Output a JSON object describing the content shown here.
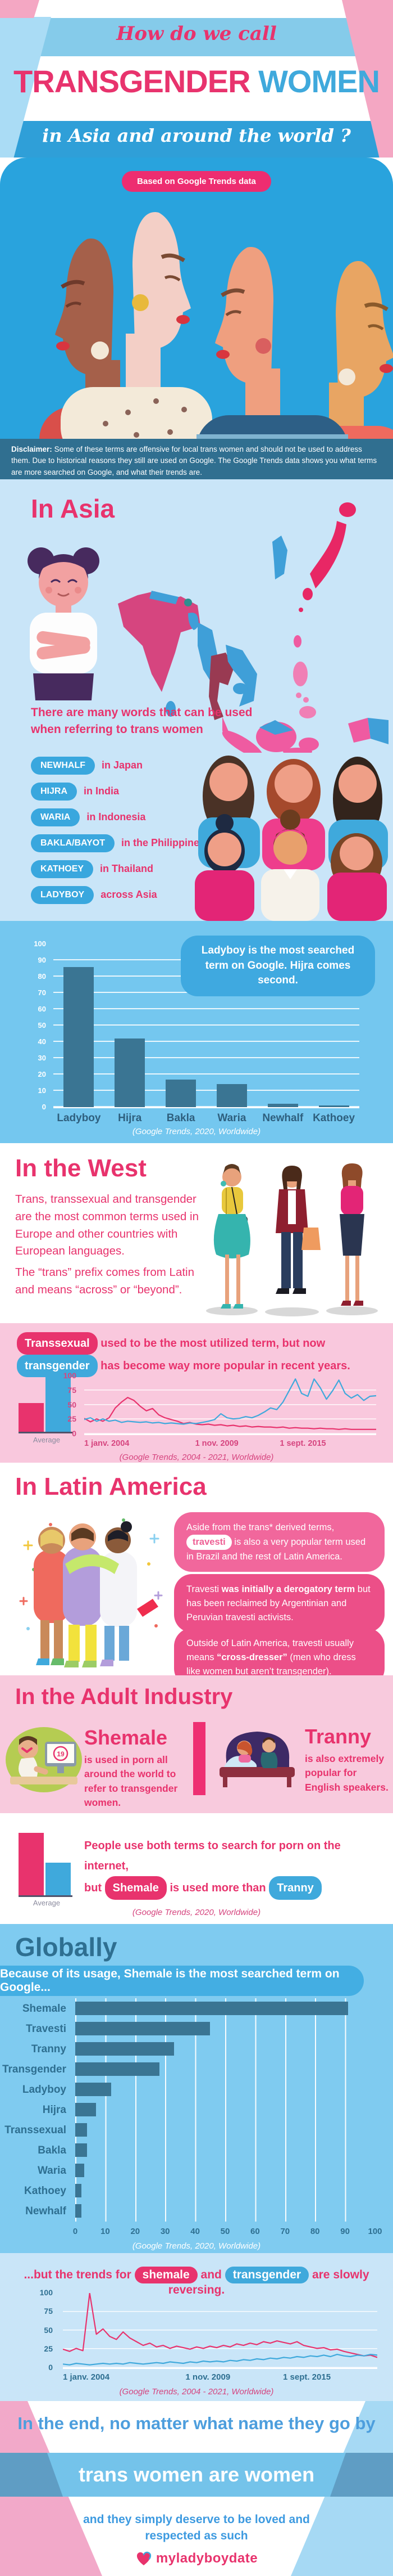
{
  "header": {
    "script_top": "How do we call",
    "title_pink": "TRANSGENDER",
    "title_blue": "WOMEN",
    "script_bottom": "in Asia and around the world ?"
  },
  "hero": {
    "badge": "Based on Google Trends data"
  },
  "disclaimer": {
    "label": "Disclaimer:",
    "text": "Some of these terms are offensive for local trans women and should not be used to address them. Due to historical reasons they still are used on Google. The Google Trends data shows you what terms are more searched on Google, and what their trends are."
  },
  "asia": {
    "title": "In Asia",
    "intro": "There are many words that can be used when referring to trans women",
    "terms": [
      {
        "term": "NEWHALF",
        "region": "in Japan"
      },
      {
        "term": "HIJRA",
        "region": "in India"
      },
      {
        "term": "WARIA",
        "region": "in Indonesia"
      },
      {
        "term": "BAKLA/BAYOT",
        "region": "in the Philippines"
      },
      {
        "term": "KATHOEY",
        "region": "in Thailand"
      },
      {
        "term": "LADYBOY",
        "region": "across Asia"
      }
    ]
  },
  "west": {
    "title": "In the West",
    "para1": "Trans, transsexual and transgender are the most common terms used in Europe and other countries with European languages.",
    "para2": "The “trans” prefix comes from Latin and means “across” or “beyond”."
  },
  "west_trends": {
    "pill1": "Transsexual",
    "mid": "used to be the most utilized term, but now",
    "pill2": "transgender",
    "end": "has become way more popular in recent years."
  },
  "latam": {
    "title": "In Latin America",
    "bubble1": {
      "pre": "Aside from the trans* derived terms,",
      "pill": "travesti",
      "post": "is also a very popular term used in Brazil and the rest of Latin America."
    },
    "bubble2": {
      "pre": "Travesti",
      "bold": "was initially a derogatory term",
      "post": "but has been reclaimed by Argentinian and Peruvian travesti activists."
    },
    "bubble3": {
      "pre": "Outside of Latin America, travesti usually means",
      "bold": "“cross-dresser”",
      "post": "(men who dress like women but aren’t transgender)."
    }
  },
  "adult": {
    "title": "In the Adult Industry",
    "shemale_title": "Shemale",
    "shemale_text": "is used in porn all around the world to refer to transgender women.",
    "tranny_title": "Tranny",
    "tranny_text": "is also extremely popular for English speakers.",
    "monitor_text": "19"
  },
  "adult_summary": {
    "line1": "People use both terms to search for porn on the internet,",
    "but": "but",
    "pill1": "Shemale",
    "mid": "is used more than",
    "pill2": "Tranny"
  },
  "globally": {
    "title": "Globally",
    "banner": "Because of its usage, Shemale is the most searched term on Google..."
  },
  "reversing": {
    "pre": "...but the trends for",
    "pill1": "shemale",
    "and": "and",
    "pill2": "transgender",
    "post": "are slowly reversing."
  },
  "outro": {
    "line1": "In the end, no matter what name they go by",
    "line2": "trans women are women",
    "line3": "and they simply deserve to be loved and respected as such",
    "logo": "myladyboydate"
  },
  "colors": {
    "pink": "#e8336d",
    "blue": "#3fa9dc",
    "bar": "#3a7593"
  },
  "chart_data": [
    {
      "id": "asia_bar",
      "type": "bar",
      "categories": [
        "Ladyboy",
        "Hijra",
        "Bakla",
        "Waria",
        "Newhalf",
        "Kathoey"
      ],
      "values": [
        86,
        42,
        17,
        14,
        2,
        1
      ],
      "title": "",
      "xlabel": "",
      "ylabel": "",
      "ylim": [
        0,
        100
      ],
      "ytick_step": 10,
      "grid": true,
      "callout": "Ladyboy is the most searched term on Google. Hijra comes second.",
      "caption": "(Google Trends, 2020, Worldwide)"
    },
    {
      "id": "west_line",
      "type": "line",
      "x_range": "2004-2021",
      "x_ticks": [
        "1 janv. 2004",
        "1 nov. 2009",
        "1 sept. 2015"
      ],
      "x_tick_pos": [
        0,
        0.38,
        0.67
      ],
      "ylim": [
        0,
        100
      ],
      "yticks": [
        0,
        25,
        50,
        75,
        100
      ],
      "grid": true,
      "series": [
        {
          "name": "transsexual",
          "color": "#e8336d",
          "values": [
            27,
            21,
            26,
            22,
            28,
            45,
            55,
            63,
            58,
            48,
            40,
            44,
            33,
            28,
            25,
            22,
            18,
            20,
            17,
            16,
            17,
            15,
            16,
            14,
            15,
            13,
            14,
            12,
            13,
            12,
            12,
            11,
            12,
            10,
            11,
            10,
            10,
            9,
            10,
            9,
            9,
            8,
            9,
            8,
            8,
            8,
            8,
            8
          ]
        },
        {
          "name": "transgender",
          "color": "#3fa9dc",
          "values": [
            25,
            28,
            22,
            26,
            22,
            24,
            20,
            22,
            21,
            20,
            21,
            19,
            20,
            18,
            19,
            18,
            17,
            19,
            18,
            20,
            22,
            25,
            35,
            28,
            26,
            27,
            30,
            28,
            32,
            38,
            45,
            42,
            55,
            75,
            95,
            70,
            65,
            95,
            80,
            60,
            75,
            93,
            70,
            62,
            68,
            58,
            65,
            66
          ]
        }
      ],
      "average": {
        "label": "Average",
        "values": [
          {
            "name": "Transsexual",
            "value": 52,
            "color": "#e8336d"
          },
          {
            "name": "Transgender",
            "value": 100,
            "color": "#3fa9dc"
          }
        ]
      },
      "caption": "(Google Trends, 2004 - 2021, Worldwide)"
    },
    {
      "id": "global_bar",
      "type": "bar",
      "orientation": "horizontal",
      "categories": [
        "Shemale",
        "Travesti",
        "Tranny",
        "Transgender",
        "Ladyboy",
        "Hijra",
        "Transsexual",
        "Bakla",
        "Waria",
        "Kathoey",
        "Newhalf"
      ],
      "values": [
        91,
        45,
        33,
        28,
        12,
        7,
        4,
        4,
        3,
        2,
        2
      ],
      "xlim": [
        0,
        100
      ],
      "xtick_step": 10,
      "grid": true,
      "caption": "(Google Trends, 2020, Worldwide)",
      "average": {
        "label": "Average",
        "values": [
          {
            "name": "Shemale",
            "value": 100,
            "color": "#e8336d"
          },
          {
            "name": "Tranny",
            "value": 52,
            "color": "#3fa9dc"
          }
        ]
      }
    },
    {
      "id": "reversing_line",
      "type": "line",
      "x_range": "2004-2021",
      "x_ticks": [
        "1 janv. 2004",
        "1 nov. 2009",
        "1 sept. 2015"
      ],
      "x_tick_pos": [
        0,
        0.39,
        0.7
      ],
      "ylim": [
        0,
        100
      ],
      "yticks": [
        0,
        25,
        50,
        75,
        100
      ],
      "grid": true,
      "series": [
        {
          "name": "shemale",
          "color": "#e8336d",
          "values": [
            25,
            22,
            26,
            23,
            100,
            45,
            52,
            42,
            38,
            48,
            40,
            35,
            30,
            33,
            28,
            30,
            26,
            29,
            27,
            25,
            28,
            26,
            29,
            27,
            30,
            28,
            32,
            30,
            33,
            31,
            35,
            33,
            36,
            34,
            32,
            35,
            30,
            28,
            26,
            27,
            24,
            25,
            22,
            20,
            18,
            16,
            17,
            14
          ]
        },
        {
          "name": "transgender",
          "color": "#3fa9dc",
          "values": [
            5,
            4,
            6,
            5,
            4,
            5,
            6,
            5,
            6,
            5,
            7,
            6,
            5,
            6,
            7,
            6,
            8,
            7,
            6,
            8,
            7,
            9,
            8,
            9,
            8,
            10,
            9,
            11,
            10,
            12,
            11,
            13,
            12,
            14,
            13,
            15,
            14,
            16,
            15,
            17,
            15,
            18,
            16,
            15,
            17,
            16,
            18,
            17
          ]
        }
      ],
      "caption": "(Google Trends, 2004 - 2021, Worldwide)"
    }
  ]
}
